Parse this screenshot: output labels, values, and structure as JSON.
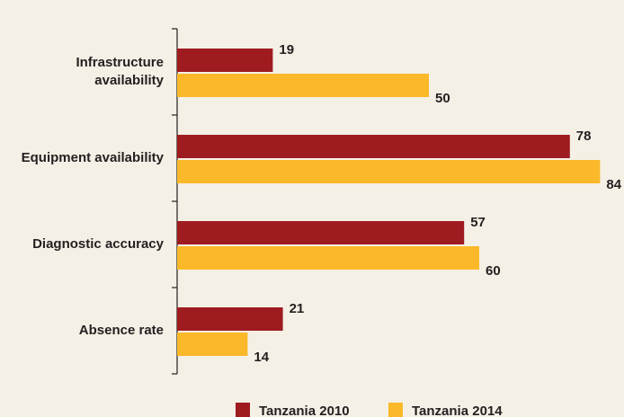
{
  "chart_data": {
    "type": "hbar",
    "categories": [
      "Infrastructure availability",
      "Equipment availability",
      "Diagnostic accuracy",
      "Absence rate"
    ],
    "series": [
      {
        "name": "Tanzania 2010",
        "color": "#9e1b20",
        "values": [
          19,
          78,
          57,
          21
        ]
      },
      {
        "name": "Tanzania 2014",
        "color": "#fbb829",
        "values": [
          50,
          84,
          60,
          14
        ]
      }
    ],
    "legend": "bottom"
  }
}
